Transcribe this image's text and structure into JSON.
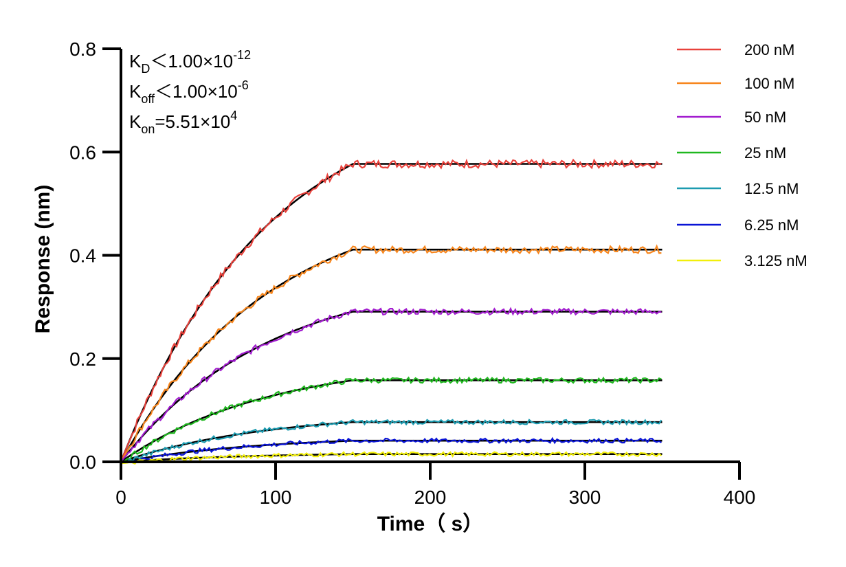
{
  "chart_data": {
    "type": "line",
    "xlabel": "Time（ s）",
    "ylabel": "Response (nm)",
    "xlim": [
      0,
      400
    ],
    "ylim": [
      0,
      0.8
    ],
    "x_ticks": [
      "0",
      "100",
      "200",
      "300",
      "400"
    ],
    "y_ticks": [
      "0.0",
      "0.2",
      "0.4",
      "0.6",
      "0.8"
    ],
    "grid": false,
    "legend_position": "right",
    "annotations": [
      {
        "main": "K",
        "sub": "D",
        "rest": "＜1.00×10",
        "sup": "-12"
      },
      {
        "main": "K",
        "sub": "off",
        "rest": "＜1.00×10",
        "sup": "-6"
      },
      {
        "main": "K",
        "sub": "on",
        "rest": "=5.51×10",
        "sup": "4"
      }
    ],
    "association_end": 150,
    "x_end": 350,
    "series": [
      {
        "name": "200 nM",
        "color": "#e8413b",
        "plateau": 0.577
      },
      {
        "name": "100 nM",
        "color": "#f7861d",
        "plateau": 0.411
      },
      {
        "name": "50 nM",
        "color": "#a21ccf",
        "plateau": 0.291
      },
      {
        "name": "25 nM",
        "color": "#1fb81f",
        "plateau": 0.158
      },
      {
        "name": "12.5 nM",
        "color": "#1c9bb0",
        "plateau": 0.077
      },
      {
        "name": "6.25 nM",
        "color": "#0a14d6",
        "plateau": 0.041
      },
      {
        "name": "3.125 nM",
        "color": "#f2ef0a",
        "plateau": 0.015
      }
    ],
    "fit_color": "#000000"
  }
}
